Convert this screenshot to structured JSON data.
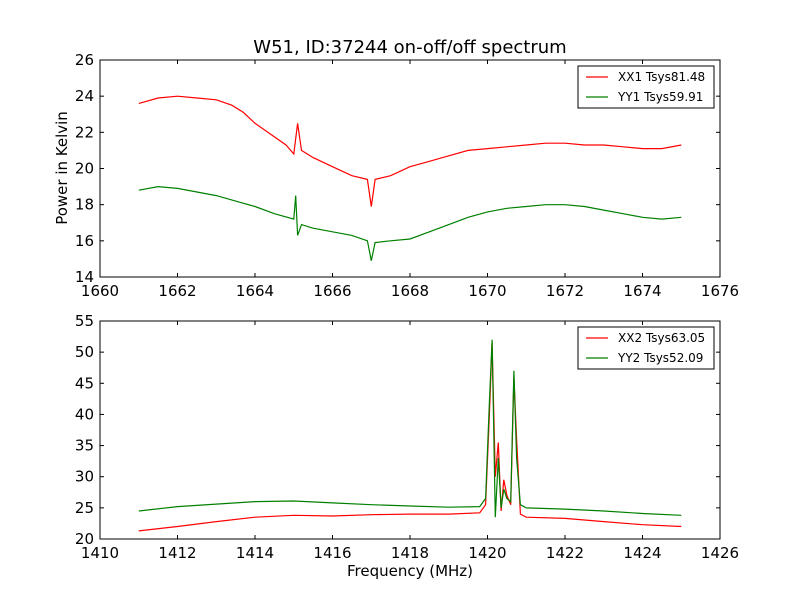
{
  "chart_data": [
    {
      "type": "line",
      "title": "W51, ID:37244 on-off/off spectrum",
      "xlabel": "",
      "ylabel": "Power in Kelvin",
      "xlim": [
        1660,
        1676
      ],
      "ylim": [
        14,
        26
      ],
      "xticks": [
        1660,
        1662,
        1664,
        1666,
        1668,
        1670,
        1672,
        1674,
        1676
      ],
      "yticks": [
        14,
        16,
        18,
        20,
        22,
        24,
        26
      ],
      "grid": false,
      "legend": "top-right",
      "series": [
        {
          "name": "XX1 Tsys81.48",
          "color": "#ff0000",
          "x": [
            1661.0,
            1661.5,
            1662.0,
            1662.5,
            1663.0,
            1663.4,
            1663.7,
            1664.0,
            1664.4,
            1664.8,
            1665.0,
            1665.1,
            1665.2,
            1665.5,
            1666.0,
            1666.5,
            1666.9,
            1667.0,
            1667.1,
            1667.5,
            1668.0,
            1668.5,
            1669.0,
            1669.5,
            1670.0,
            1670.5,
            1671.0,
            1671.5,
            1672.0,
            1672.5,
            1673.0,
            1673.5,
            1674.0,
            1674.5,
            1675.0
          ],
          "y": [
            23.6,
            23.9,
            24.0,
            23.9,
            23.8,
            23.5,
            23.1,
            22.5,
            21.9,
            21.3,
            20.8,
            22.5,
            21.0,
            20.6,
            20.1,
            19.6,
            19.4,
            17.9,
            19.4,
            19.6,
            20.1,
            20.4,
            20.7,
            21.0,
            21.1,
            21.2,
            21.3,
            21.4,
            21.4,
            21.3,
            21.3,
            21.2,
            21.1,
            21.1,
            21.3
          ]
        },
        {
          "name": "YY1 Tsys59.91",
          "color": "#008000",
          "x": [
            1661.0,
            1661.5,
            1662.0,
            1662.5,
            1663.0,
            1663.5,
            1664.0,
            1664.5,
            1665.0,
            1665.05,
            1665.1,
            1665.2,
            1665.5,
            1666.0,
            1666.5,
            1666.9,
            1667.0,
            1667.1,
            1667.5,
            1668.0,
            1668.5,
            1669.0,
            1669.5,
            1670.0,
            1670.5,
            1671.0,
            1671.5,
            1672.0,
            1672.5,
            1673.0,
            1673.5,
            1674.0,
            1674.5,
            1675.0
          ],
          "y": [
            18.8,
            19.0,
            18.9,
            18.7,
            18.5,
            18.2,
            17.9,
            17.5,
            17.2,
            18.5,
            16.3,
            16.9,
            16.7,
            16.5,
            16.3,
            16.0,
            14.9,
            15.9,
            16.0,
            16.1,
            16.5,
            16.9,
            17.3,
            17.6,
            17.8,
            17.9,
            18.0,
            18.0,
            17.9,
            17.7,
            17.5,
            17.3,
            17.2,
            17.3
          ]
        }
      ]
    },
    {
      "type": "line",
      "title": "",
      "xlabel": "Frequency (MHz)",
      "ylabel": "",
      "xlim": [
        1410,
        1426
      ],
      "ylim": [
        20,
        55
      ],
      "xticks": [
        1410,
        1412,
        1414,
        1416,
        1418,
        1420,
        1422,
        1424,
        1426
      ],
      "yticks": [
        20,
        25,
        30,
        35,
        40,
        45,
        50,
        55
      ],
      "grid": false,
      "legend": "top-right",
      "series": [
        {
          "name": "XX2 Tsys63.05",
          "color": "#ff0000",
          "x": [
            1411.0,
            1412.0,
            1413.0,
            1414.0,
            1415.0,
            1416.0,
            1417.0,
            1418.0,
            1419.0,
            1419.8,
            1419.95,
            1420.05,
            1420.12,
            1420.2,
            1420.28,
            1420.35,
            1420.42,
            1420.5,
            1420.6,
            1420.68,
            1420.75,
            1420.85,
            1421.0,
            1422.0,
            1423.0,
            1424.0,
            1425.0
          ],
          "y": [
            21.3,
            22.0,
            22.8,
            23.5,
            23.8,
            23.7,
            23.9,
            24.0,
            24.0,
            24.2,
            25.5,
            40.0,
            51.5,
            30.0,
            35.5,
            24.5,
            29.5,
            27.0,
            25.5,
            46.0,
            36.0,
            24.0,
            23.5,
            23.3,
            22.8,
            22.3,
            22.0
          ]
        },
        {
          "name": "YY2 Tsys52.09",
          "color": "#008000",
          "x": [
            1411.0,
            1412.0,
            1413.0,
            1414.0,
            1415.0,
            1416.0,
            1417.0,
            1418.0,
            1419.0,
            1419.8,
            1419.95,
            1420.05,
            1420.12,
            1420.2,
            1420.28,
            1420.35,
            1420.42,
            1420.5,
            1420.6,
            1420.68,
            1420.75,
            1420.85,
            1421.0,
            1422.0,
            1423.0,
            1424.0,
            1425.0
          ],
          "y": [
            24.5,
            25.2,
            25.6,
            26.0,
            26.1,
            25.8,
            25.5,
            25.3,
            25.1,
            25.2,
            26.5,
            42.0,
            52.0,
            23.5,
            33.0,
            25.0,
            28.0,
            26.5,
            26.0,
            47.0,
            33.0,
            25.5,
            25.0,
            24.8,
            24.5,
            24.1,
            23.8
          ]
        }
      ]
    }
  ]
}
